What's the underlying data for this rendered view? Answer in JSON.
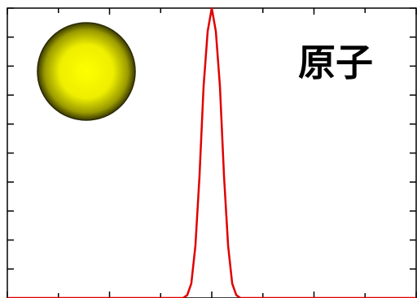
{
  "chart_data": {
    "type": "line",
    "title": "",
    "xlabel": "",
    "ylabel": "",
    "grid": false,
    "xlim": [
      -10,
      10
    ],
    "ylim": [
      0,
      10
    ],
    "xticks_major": [
      -10,
      -5,
      0,
      5,
      10
    ],
    "xticks_minor": [
      -7.5,
      -2.5,
      2.5,
      7.5
    ],
    "yticks": [
      0,
      1,
      2,
      3,
      4,
      5,
      6,
      7,
      8,
      9,
      10
    ],
    "series": [
      {
        "color": "#e00000",
        "x": [
          -10,
          -1.4,
          -1.2,
          -1.0,
          -0.8,
          -0.6,
          -0.4,
          -0.2,
          0.0,
          0.2,
          0.4,
          0.6,
          0.8,
          1.0,
          1.2,
          1.4,
          10
        ],
        "y": [
          0,
          0,
          0.1,
          0.5,
          1.8,
          4.2,
          7.3,
          9.2,
          10.0,
          9.2,
          7.3,
          4.2,
          1.8,
          0.5,
          0.1,
          0,
          0
        ]
      }
    ],
    "annotation": {
      "text": "原子",
      "color": "#000000"
    },
    "inset_icon": {
      "name": "atom-sphere-icon",
      "color": "#ffff00",
      "edge_color": "#2a2a00"
    }
  }
}
